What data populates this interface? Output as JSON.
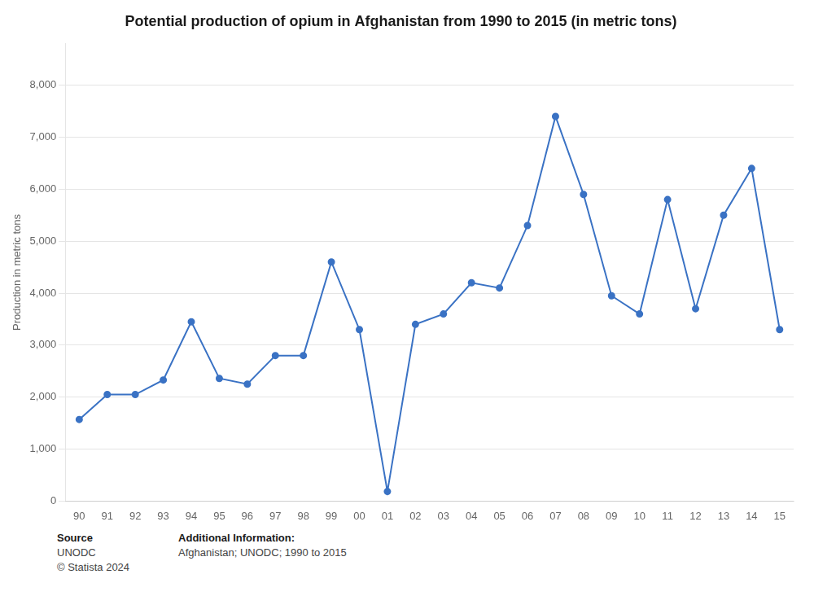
{
  "chart_data": {
    "type": "line",
    "title": "Potential production of opium in Afghanistan from 1990 to 2015 (in metric tons)",
    "ylabel": "Production in metric tons",
    "categories": [
      "90",
      "91",
      "92",
      "93",
      "94",
      "95",
      "96",
      "97",
      "98",
      "99",
      "00",
      "01",
      "02",
      "03",
      "04",
      "05",
      "06",
      "07",
      "08",
      "09",
      "10",
      "11",
      "12",
      "13",
      "14",
      "15"
    ],
    "values": [
      1570,
      2050,
      2050,
      2330,
      3450,
      2360,
      2250,
      2800,
      2800,
      4600,
      3300,
      185,
      3400,
      3600,
      4200,
      4100,
      5300,
      7400,
      5900,
      3950,
      3600,
      5800,
      3700,
      5500,
      6400,
      3300
    ],
    "color": "#3a72c4",
    "marker": "circle",
    "ylim": [
      0,
      8800
    ],
    "yticks": [
      0,
      {
        "value": 1000,
        "label": "1,000"
      },
      {
        "value": 2000,
        "label": "2,000"
      },
      {
        "value": 3000,
        "label": "3,000"
      },
      {
        "value": 4000,
        "label": "4,000"
      },
      {
        "value": 5000,
        "label": "5,000"
      },
      {
        "value": 6000,
        "label": "6,000"
      },
      {
        "value": 7000,
        "label": "7,000"
      },
      {
        "value": 8000,
        "label": "8,000"
      }
    ],
    "grid": true,
    "annotations": [
      [
        "Source",
        "UNODC",
        "© Statista 2024"
      ],
      [
        "Additional Information:",
        "Afghanistan; UNODC; 1990 to 2015"
      ]
    ]
  }
}
